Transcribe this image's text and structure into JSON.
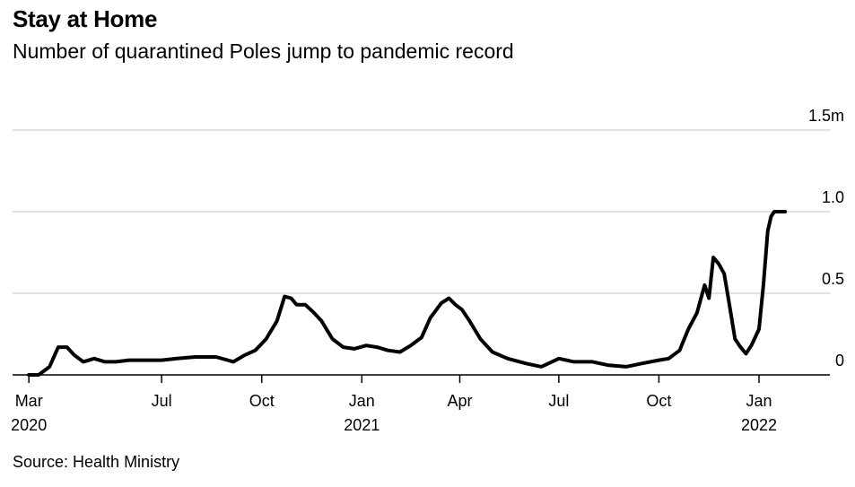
{
  "header": {
    "title": "Stay at Home",
    "subtitle": "Number of quarantined Poles jump to pandemic record"
  },
  "footer": {
    "source": "Source: Health Ministry"
  },
  "colors": {
    "line": "#000000",
    "grid": "#d9d9d9",
    "axis": "#000000",
    "background": "#ffffff"
  },
  "chart_data": {
    "type": "line",
    "title": "Stay at Home",
    "subtitle": "Number of quarantined Poles jump to pandemic record",
    "xlabel": "",
    "ylabel": "",
    "ylim": [
      0,
      1.5
    ],
    "xlim": [
      "2020-03-01",
      "2022-02-28"
    ],
    "grid": true,
    "legend": "none",
    "y_unit": "million people",
    "y_ticks": [
      {
        "value": 0,
        "label": "0"
      },
      {
        "value": 0.5,
        "label": "0.5"
      },
      {
        "value": 1.0,
        "label": "1.0"
      },
      {
        "value": 1.5,
        "label": "1.5m"
      }
    ],
    "x_ticks": [
      {
        "date": "2020-03-01",
        "label": "Mar",
        "year": "2020"
      },
      {
        "date": "2020-07-01",
        "label": "Jul",
        "year": ""
      },
      {
        "date": "2020-10-01",
        "label": "Oct",
        "year": ""
      },
      {
        "date": "2021-01-01",
        "label": "Jan",
        "year": "2021"
      },
      {
        "date": "2021-04-01",
        "label": "Apr",
        "year": ""
      },
      {
        "date": "2021-07-01",
        "label": "Jul",
        "year": ""
      },
      {
        "date": "2021-10-01",
        "label": "Oct",
        "year": ""
      },
      {
        "date": "2022-01-01",
        "label": "Jan",
        "year": "2022"
      }
    ],
    "series": [
      {
        "x": [
          "2020-03-01",
          "2020-03-10",
          "2020-03-20",
          "2020-03-28",
          "2020-04-05",
          "2020-04-12",
          "2020-04-20",
          "2020-04-30",
          "2020-05-10",
          "2020-05-20",
          "2020-06-01",
          "2020-06-15",
          "2020-07-01",
          "2020-07-15",
          "2020-08-01",
          "2020-08-20",
          "2020-09-05",
          "2020-09-15",
          "2020-09-25",
          "2020-10-05",
          "2020-10-15",
          "2020-10-22",
          "2020-10-28",
          "2020-11-02",
          "2020-11-10",
          "2020-11-18",
          "2020-11-25",
          "2020-12-05",
          "2020-12-15",
          "2020-12-25",
          "2021-01-05",
          "2021-01-15",
          "2021-01-25",
          "2021-02-05",
          "2021-02-15",
          "2021-02-25",
          "2021-03-05",
          "2021-03-15",
          "2021-03-22",
          "2021-03-28",
          "2021-04-03",
          "2021-04-10",
          "2021-04-20",
          "2021-05-01",
          "2021-05-15",
          "2021-06-01",
          "2021-06-15",
          "2021-07-01",
          "2021-07-15",
          "2021-08-01",
          "2021-08-15",
          "2021-09-01",
          "2021-09-15",
          "2021-10-01",
          "2021-10-10",
          "2021-10-20",
          "2021-10-28",
          "2021-11-05",
          "2021-11-12",
          "2021-11-16",
          "2021-11-20",
          "2021-11-25",
          "2021-11-30",
          "2021-12-05",
          "2021-12-10",
          "2021-12-15",
          "2021-12-20",
          "2021-12-25",
          "2022-01-01",
          "2022-01-05",
          "2022-01-09",
          "2022-01-12",
          "2022-01-15",
          "2022-01-18",
          "2022-01-22",
          "2022-01-25"
        ],
        "values": [
          0.0,
          0.0,
          0.05,
          0.17,
          0.17,
          0.12,
          0.08,
          0.1,
          0.08,
          0.08,
          0.09,
          0.09,
          0.09,
          0.1,
          0.11,
          0.11,
          0.08,
          0.12,
          0.15,
          0.22,
          0.33,
          0.48,
          0.47,
          0.43,
          0.43,
          0.38,
          0.33,
          0.22,
          0.17,
          0.16,
          0.18,
          0.17,
          0.15,
          0.14,
          0.18,
          0.23,
          0.35,
          0.44,
          0.47,
          0.43,
          0.4,
          0.33,
          0.22,
          0.14,
          0.1,
          0.07,
          0.05,
          0.1,
          0.08,
          0.08,
          0.06,
          0.05,
          0.07,
          0.09,
          0.1,
          0.15,
          0.28,
          0.38,
          0.55,
          0.47,
          0.72,
          0.68,
          0.62,
          0.42,
          0.22,
          0.17,
          0.13,
          0.18,
          0.28,
          0.55,
          0.88,
          0.97,
          1.0,
          1.0,
          1.0,
          1.0
        ]
      }
    ]
  }
}
